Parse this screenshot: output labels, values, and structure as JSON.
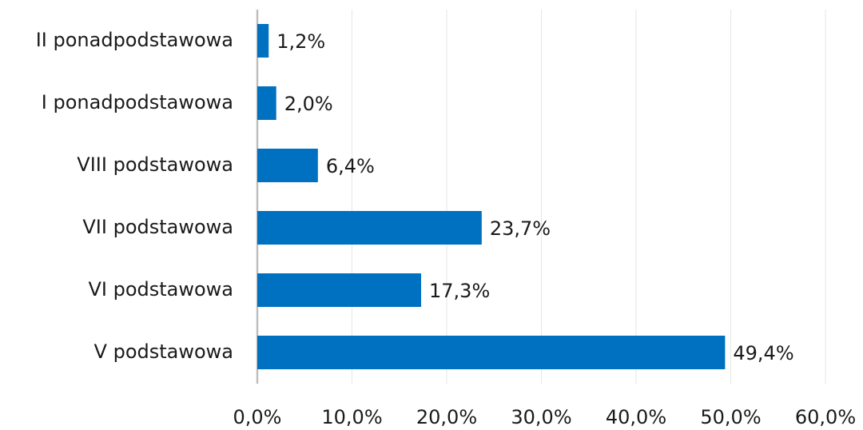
{
  "chart_data": {
    "type": "bar",
    "orientation": "horizontal",
    "categories": [
      "II ponadpodstawowa",
      "I ponadpodstawowa",
      "VIII podstawowa",
      "VII podstawowa",
      "VI podstawowa",
      "V podstawowa"
    ],
    "values": [
      1.2,
      2.0,
      6.4,
      23.7,
      17.3,
      49.4
    ],
    "value_labels": [
      "1,2%",
      "2,0%",
      "6,4%",
      "23,7%",
      "17,3%",
      "49,4%"
    ],
    "color": "#0070c0",
    "xlim": [
      0,
      60
    ],
    "xticks": [
      {
        "value": 0,
        "label": "0,0%"
      },
      {
        "value": 10,
        "label": "10,0%"
      },
      {
        "value": 20,
        "label": "20,0%"
      },
      {
        "value": 30,
        "label": "30,0%"
      },
      {
        "value": 40,
        "label": "40,0%"
      },
      {
        "value": 50,
        "label": "50,0%"
      },
      {
        "value": 60,
        "label": "60,0%"
      }
    ],
    "grid": true
  }
}
